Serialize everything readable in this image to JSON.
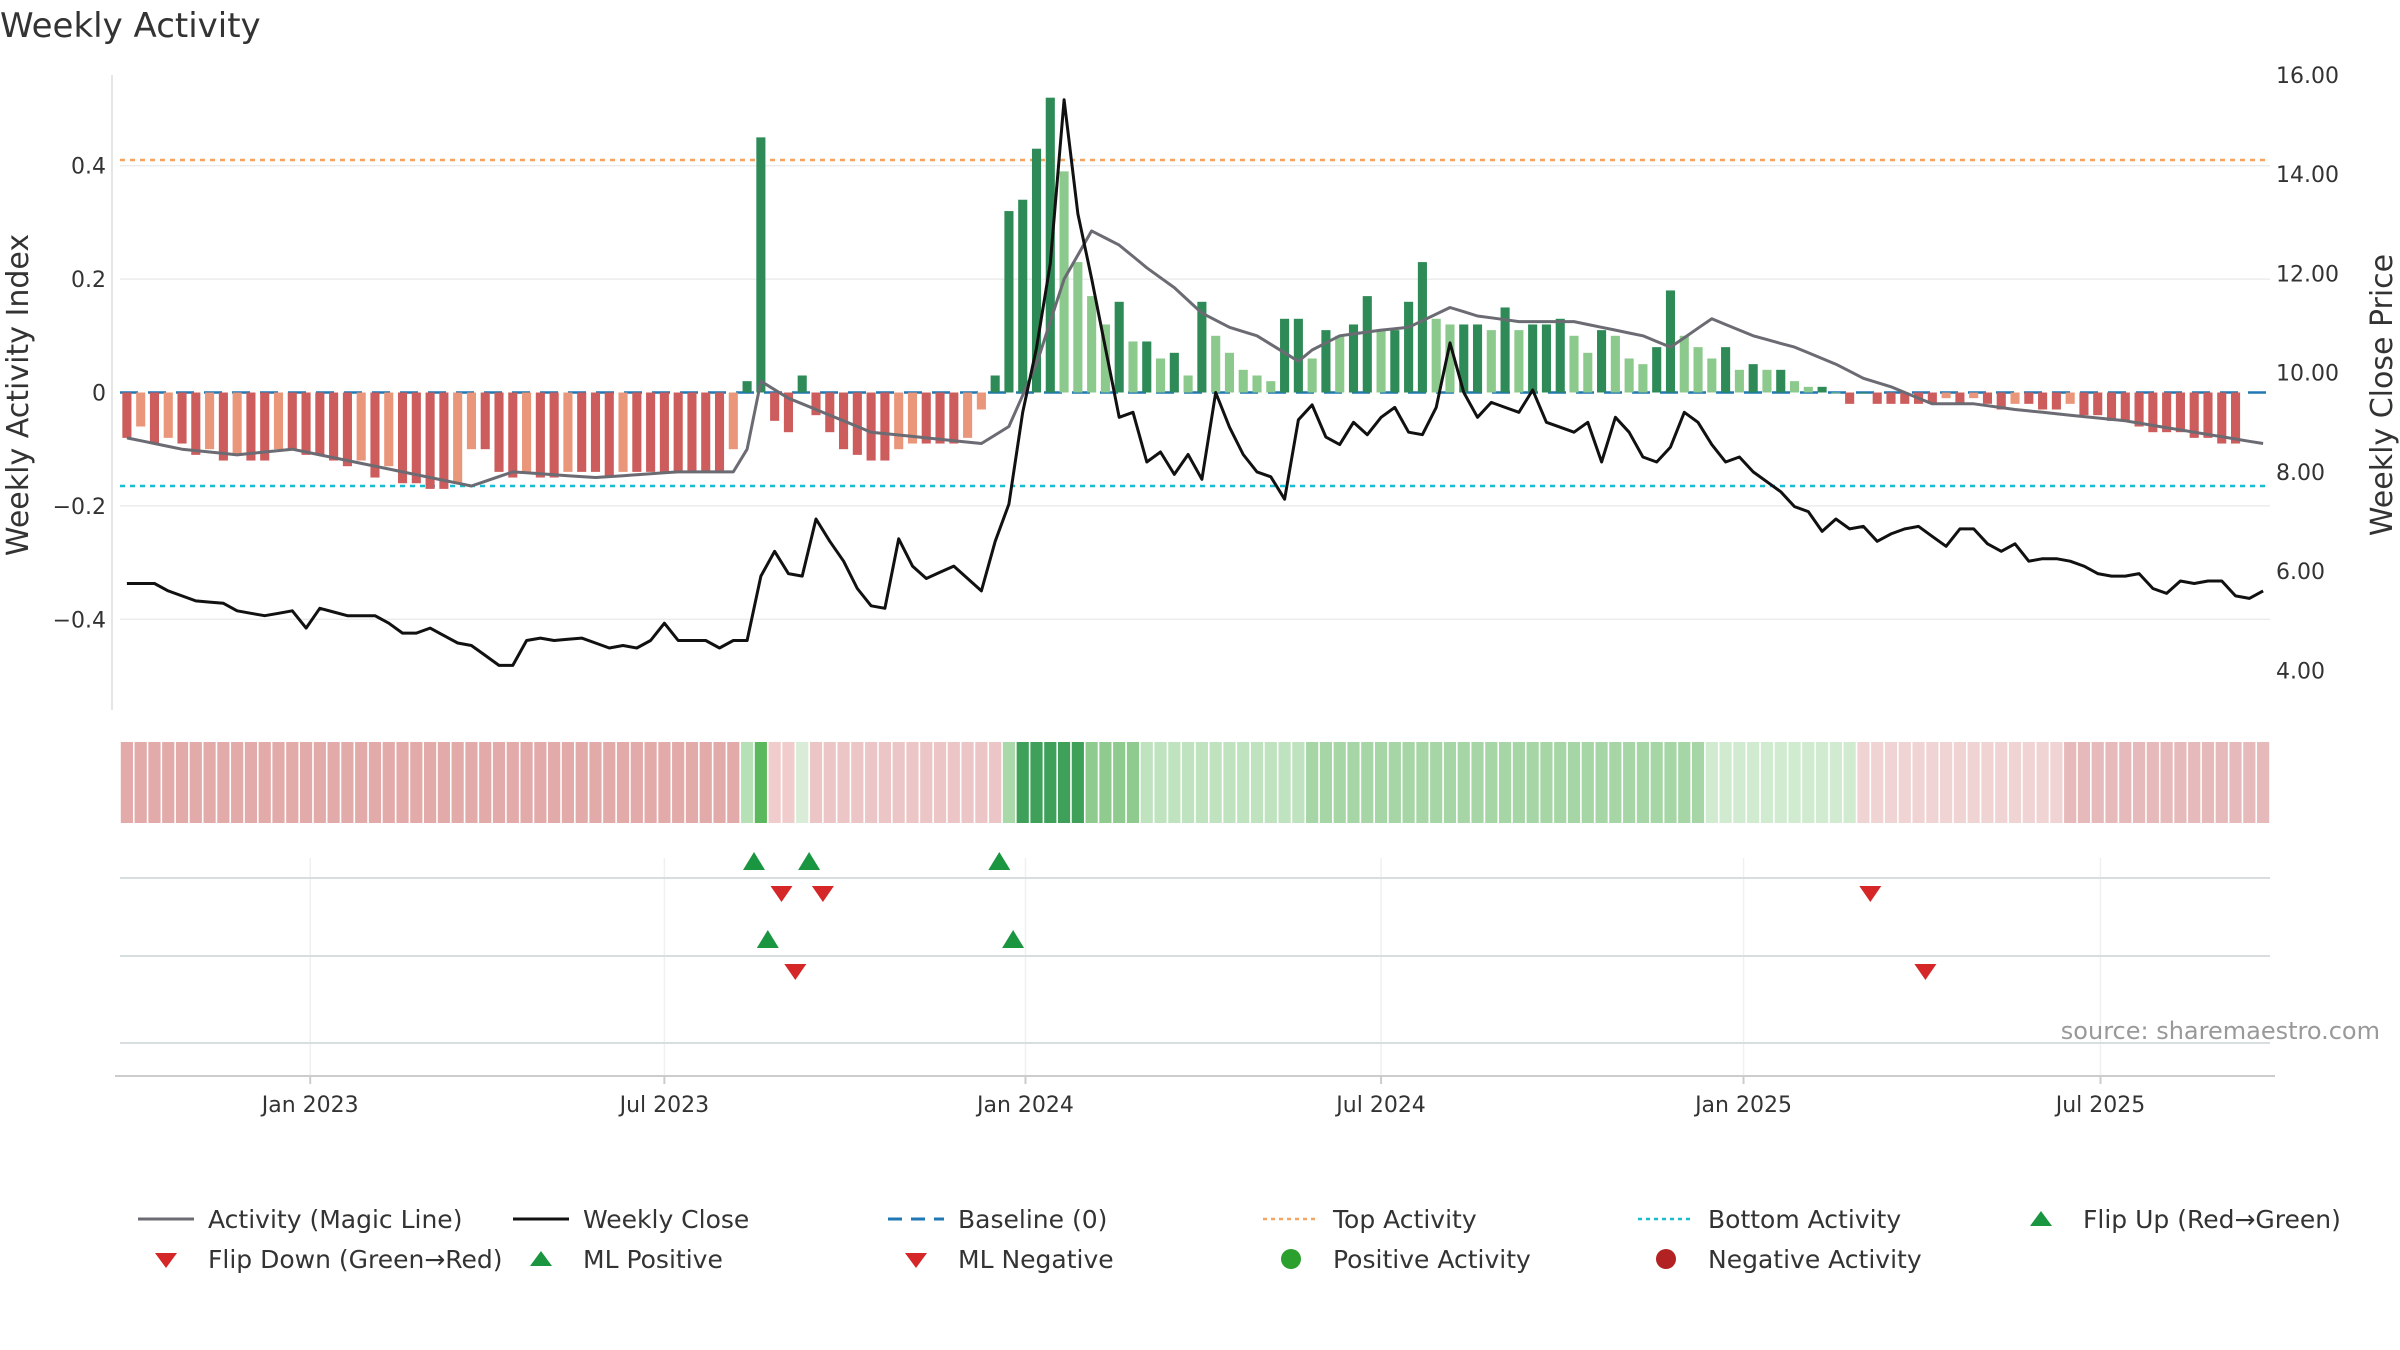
{
  "title": "Weekly Activity",
  "source": "source: sharemaestro.com",
  "colors": {
    "bar_green_dark": "#2e8b57",
    "bar_green_light": "#8cc98c",
    "bar_red_dark": "#cd5c5c",
    "bar_red_light": "#e9967a",
    "magic_line": "#6b6b73",
    "close_line": "#111111",
    "baseline": "#1f77b4",
    "top_line": "#f4a460",
    "bottom_line": "#17becf",
    "marker_up": "#1a9641",
    "marker_down": "#d62728",
    "dot_positive": "#2ca02c",
    "dot_negative": "#b22222"
  },
  "chart_data": {
    "type": "bar+line",
    "start_date": "2022-10-03",
    "weeks": 156,
    "left_axis": {
      "label": "Weekly Activity Index",
      "ylim": [
        -0.56,
        0.56
      ],
      "ticks": [
        0.4,
        0.2,
        0,
        -0.2,
        -0.4
      ],
      "tick_labels": [
        "0.4",
        "0.2",
        "0",
        "−0.2",
        "−0.4"
      ]
    },
    "right_axis": {
      "label": "Weekly Close Price",
      "ylim": [
        3.2,
        16.0
      ],
      "ticks": [
        16,
        14,
        12,
        10,
        8,
        6,
        4
      ],
      "tick_labels": [
        "16.00",
        "14.00",
        "12.00",
        "10.00",
        "8.00",
        "6.00",
        "4.00"
      ]
    },
    "x_ticks": [
      {
        "label": "Jan 2023",
        "week": 13.3
      },
      {
        "label": "Jul 2023",
        "week": 39.0
      },
      {
        "label": "Jan 2024",
        "week": 65.2
      },
      {
        "label": "Jul 2024",
        "week": 91.0
      },
      {
        "label": "Jan 2025",
        "week": 117.3
      },
      {
        "label": "Jul 2025",
        "week": 143.2
      }
    ],
    "reference_lines": {
      "top_activity": 0.41,
      "bottom_activity": -0.165,
      "baseline": 0
    },
    "activity_anchors": [
      [
        0,
        -0.08
      ],
      [
        4,
        -0.1
      ],
      [
        8,
        -0.11
      ],
      [
        12,
        -0.1
      ],
      [
        16,
        -0.12
      ],
      [
        20,
        -0.14
      ],
      [
        25,
        -0.165
      ],
      [
        28,
        -0.14
      ],
      [
        34,
        -0.15
      ],
      [
        40,
        -0.14
      ],
      [
        44,
        -0.14
      ],
      [
        45,
        -0.1
      ],
      [
        46,
        0.02
      ],
      [
        48,
        -0.01
      ],
      [
        50,
        -0.03
      ],
      [
        54,
        -0.07
      ],
      [
        58,
        -0.08
      ],
      [
        62,
        -0.09
      ],
      [
        64,
        -0.06
      ],
      [
        66,
        0.05
      ],
      [
        68,
        0.2
      ],
      [
        70,
        0.285
      ],
      [
        72,
        0.26
      ],
      [
        74,
        0.22
      ],
      [
        76,
        0.185
      ],
      [
        78,
        0.14
      ],
      [
        80,
        0.115
      ],
      [
        82,
        0.1
      ],
      [
        84,
        0.07
      ],
      [
        85,
        0.055
      ],
      [
        86,
        0.075
      ],
      [
        88,
        0.1
      ],
      [
        91,
        0.11
      ],
      [
        93,
        0.115
      ],
      [
        96,
        0.15
      ],
      [
        98,
        0.135
      ],
      [
        101,
        0.125
      ],
      [
        105,
        0.125
      ],
      [
        107,
        0.115
      ],
      [
        110,
        0.1
      ],
      [
        112,
        0.08
      ],
      [
        115,
        0.13
      ],
      [
        118,
        0.1
      ],
      [
        121,
        0.08
      ],
      [
        124,
        0.05
      ],
      [
        126,
        0.025
      ],
      [
        128,
        0.01
      ],
      [
        131,
        -0.02
      ],
      [
        134,
        -0.02
      ],
      [
        137,
        -0.03
      ],
      [
        141,
        -0.04
      ],
      [
        145,
        -0.05
      ],
      [
        150,
        -0.07
      ],
      [
        155,
        -0.09
      ]
    ],
    "activity_bars": [
      -0.08,
      -0.06,
      -0.09,
      -0.08,
      -0.09,
      -0.11,
      -0.1,
      -0.12,
      -0.11,
      -0.12,
      -0.12,
      -0.1,
      -0.1,
      -0.11,
      -0.11,
      -0.12,
      -0.13,
      -0.12,
      -0.15,
      -0.13,
      -0.16,
      -0.16,
      -0.17,
      -0.17,
      -0.16,
      -0.1,
      -0.1,
      -0.14,
      -0.15,
      -0.14,
      -0.15,
      -0.15,
      -0.14,
      -0.14,
      -0.14,
      -0.15,
      -0.14,
      -0.14,
      -0.14,
      -0.14,
      -0.14,
      -0.14,
      -0.14,
      -0.14,
      -0.1,
      0.02,
      0.45,
      -0.05,
      -0.07,
      0.03,
      -0.04,
      -0.07,
      -0.1,
      -0.11,
      -0.12,
      -0.12,
      -0.1,
      -0.09,
      -0.09,
      -0.09,
      -0.09,
      -0.08,
      -0.03,
      0.03,
      0.32,
      0.34,
      0.43,
      0.52,
      0.39,
      0.23,
      0.17,
      0.12,
      0.16,
      0.09,
      0.09,
      0.06,
      0.07,
      0.03,
      0.16,
      0.1,
      0.07,
      0.04,
      0.03,
      0.02,
      0.13,
      0.13,
      0.06,
      0.11,
      0.1,
      0.12,
      0.17,
      0.11,
      0.11,
      0.16,
      0.23,
      0.13,
      0.12,
      0.12,
      0.12,
      0.11,
      0.15,
      0.11,
      0.12,
      0.12,
      0.13,
      0.1,
      0.07,
      0.11,
      0.1,
      0.06,
      0.05,
      0.08,
      0.18,
      0.1,
      0.08,
      0.06,
      0.08,
      0.04,
      0.05,
      0.04,
      0.04,
      0.02,
      0.01,
      0.01,
      0.0,
      -0.02,
      0.0,
      -0.02,
      -0.02,
      -0.02,
      -0.02,
      -0.02,
      -0.01,
      -0.02,
      -0.01,
      -0.02,
      -0.03,
      -0.02,
      -0.02,
      -0.03,
      -0.03,
      -0.02,
      -0.04,
      -0.04,
      -0.05,
      -0.05,
      -0.06,
      -0.07,
      -0.07,
      -0.07,
      -0.08,
      -0.08,
      -0.09,
      -0.09
    ],
    "close_anchors": [
      [
        0,
        5.75
      ],
      [
        2,
        5.75
      ],
      [
        3,
        5.6
      ],
      [
        5,
        5.4
      ],
      [
        7,
        5.35
      ],
      [
        8,
        5.2
      ],
      [
        10,
        5.1
      ],
      [
        12,
        5.2
      ],
      [
        13,
        4.85
      ],
      [
        14,
        5.25
      ],
      [
        16,
        5.1
      ],
      [
        18,
        5.1
      ],
      [
        19,
        4.95
      ],
      [
        20,
        4.75
      ],
      [
        21,
        4.75
      ],
      [
        22,
        4.85
      ],
      [
        24,
        4.55
      ],
      [
        25,
        4.5
      ],
      [
        27,
        4.1
      ],
      [
        28,
        4.1
      ],
      [
        29,
        4.6
      ],
      [
        30,
        4.65
      ],
      [
        31,
        4.6
      ],
      [
        33,
        4.65
      ],
      [
        35,
        4.45
      ],
      [
        36,
        4.5
      ],
      [
        37,
        4.45
      ],
      [
        38,
        4.6
      ],
      [
        39,
        4.95
      ],
      [
        40,
        4.6
      ],
      [
        42,
        4.6
      ],
      [
        43,
        4.45
      ],
      [
        44,
        4.6
      ],
      [
        45,
        4.6
      ],
      [
        46,
        5.9
      ],
      [
        47,
        6.4
      ],
      [
        48,
        5.95
      ],
      [
        49,
        5.9
      ],
      [
        50,
        7.05
      ],
      [
        51,
        6.6
      ],
      [
        52,
        6.2
      ],
      [
        53,
        5.65
      ],
      [
        54,
        5.3
      ],
      [
        55,
        5.25
      ],
      [
        56,
        6.65
      ],
      [
        57,
        6.1
      ],
      [
        58,
        5.85
      ],
      [
        60,
        6.1
      ],
      [
        62,
        5.6
      ],
      [
        63,
        6.6
      ],
      [
        64,
        7.35
      ],
      [
        65,
        9.2
      ],
      [
        66,
        10.5
      ],
      [
        67,
        12.2
      ],
      [
        68,
        15.5
      ],
      [
        69,
        13.2
      ],
      [
        70,
        11.9
      ],
      [
        71,
        10.5
      ],
      [
        72,
        9.1
      ],
      [
        73,
        9.2
      ],
      [
        74,
        8.2
      ],
      [
        75,
        8.4
      ],
      [
        76,
        7.95
      ],
      [
        77,
        8.35
      ],
      [
        78,
        7.85
      ],
      [
        79,
        9.6
      ],
      [
        80,
        8.9
      ],
      [
        81,
        8.35
      ],
      [
        82,
        8.0
      ],
      [
        83,
        7.9
      ],
      [
        84,
        7.45
      ],
      [
        85,
        9.05
      ],
      [
        86,
        9.35
      ],
      [
        87,
        8.7
      ],
      [
        88,
        8.55
      ],
      [
        89,
        9.0
      ],
      [
        90,
        8.75
      ],
      [
        91,
        9.1
      ],
      [
        92,
        9.3
      ],
      [
        93,
        8.8
      ],
      [
        94,
        8.75
      ],
      [
        95,
        9.3
      ],
      [
        96,
        10.6
      ],
      [
        97,
        9.6
      ],
      [
        98,
        9.1
      ],
      [
        99,
        9.4
      ],
      [
        100,
        9.3
      ],
      [
        101,
        9.2
      ],
      [
        102,
        9.65
      ],
      [
        103,
        9.0
      ],
      [
        104,
        8.9
      ],
      [
        105,
        8.8
      ],
      [
        106,
        9.0
      ],
      [
        107,
        8.2
      ],
      [
        108,
        9.1
      ],
      [
        109,
        8.8
      ],
      [
        110,
        8.3
      ],
      [
        111,
        8.2
      ],
      [
        112,
        8.5
      ],
      [
        113,
        9.2
      ],
      [
        114,
        9.0
      ],
      [
        115,
        8.55
      ],
      [
        116,
        8.2
      ],
      [
        117,
        8.3
      ],
      [
        118,
        8.0
      ],
      [
        119,
        7.8
      ],
      [
        120,
        7.6
      ],
      [
        121,
        7.3
      ],
      [
        122,
        7.2
      ],
      [
        123,
        6.8
      ],
      [
        124,
        7.05
      ],
      [
        125,
        6.85
      ],
      [
        126,
        6.9
      ],
      [
        127,
        6.6
      ],
      [
        128,
        6.75
      ],
      [
        129,
        6.85
      ],
      [
        130,
        6.9
      ],
      [
        131,
        6.7
      ],
      [
        132,
        6.5
      ],
      [
        133,
        6.85
      ],
      [
        134,
        6.85
      ],
      [
        135,
        6.55
      ],
      [
        136,
        6.4
      ],
      [
        137,
        6.55
      ],
      [
        138,
        6.2
      ],
      [
        139,
        6.25
      ],
      [
        140,
        6.25
      ],
      [
        141,
        6.2
      ],
      [
        142,
        6.1
      ],
      [
        143,
        5.95
      ],
      [
        144,
        5.9
      ],
      [
        145,
        5.9
      ],
      [
        146,
        5.95
      ],
      [
        147,
        5.65
      ],
      [
        148,
        5.55
      ],
      [
        149,
        5.8
      ],
      [
        150,
        5.75
      ],
      [
        151,
        5.8
      ],
      [
        152,
        5.8
      ],
      [
        153,
        5.5
      ],
      [
        154,
        5.45
      ],
      [
        155,
        5.6
      ]
    ],
    "heat_strip": [
      {
        "from": 0,
        "to": 44,
        "color": "#e3aaaa"
      },
      {
        "from": 45,
        "to": 45,
        "color": "#b6e0b6"
      },
      {
        "from": 46,
        "to": 46,
        "color": "#5cb85c"
      },
      {
        "from": 47,
        "to": 48,
        "color": "#f0cccc"
      },
      {
        "from": 49,
        "to": 49,
        "color": "#d8ecd8"
      },
      {
        "from": 50,
        "to": 63,
        "color": "#ecc6c6"
      },
      {
        "from": 64,
        "to": 64,
        "color": "#a9d8a9"
      },
      {
        "from": 65,
        "to": 69,
        "color": "#3fa05a"
      },
      {
        "from": 70,
        "to": 73,
        "color": "#8fcb8f"
      },
      {
        "from": 74,
        "to": 85,
        "color": "#bfe3bf"
      },
      {
        "from": 86,
        "to": 114,
        "color": "#a6d6a6"
      },
      {
        "from": 115,
        "to": 125,
        "color": "#d0ebd0"
      },
      {
        "from": 126,
        "to": 140,
        "color": "#f0d4d4"
      },
      {
        "from": 141,
        "to": 155,
        "color": "#e6baba"
      }
    ],
    "flip_up_weeks": [
      45.5,
      49.5,
      63.3
    ],
    "flip_down_weeks": [
      47.5,
      50.5,
      126.5
    ],
    "ml_positive_weeks": [
      46.5,
      64.3
    ],
    "ml_negative_weeks": [
      48.5,
      130.5
    ],
    "legend": [
      {
        "label": "Activity (Magic Line)",
        "symbol": "line-gray"
      },
      {
        "label": "Weekly Close",
        "symbol": "line-black"
      },
      {
        "label": "Baseline (0)",
        "symbol": "dash-blue"
      },
      {
        "label": "Top Activity",
        "symbol": "dot-orange"
      },
      {
        "label": "Bottom Activity",
        "symbol": "dot-cyan"
      },
      {
        "label": "Flip Up (Red→Green)",
        "symbol": "tri-up"
      },
      {
        "label": "Flip Down (Green→Red)",
        "symbol": "tri-down"
      },
      {
        "label": "ML Positive",
        "symbol": "tri-up"
      },
      {
        "label": "ML Negative",
        "symbol": "tri-down"
      },
      {
        "label": "Positive Activity",
        "symbol": "circle-green"
      },
      {
        "label": "Negative Activity",
        "symbol": "circle-red"
      }
    ]
  }
}
